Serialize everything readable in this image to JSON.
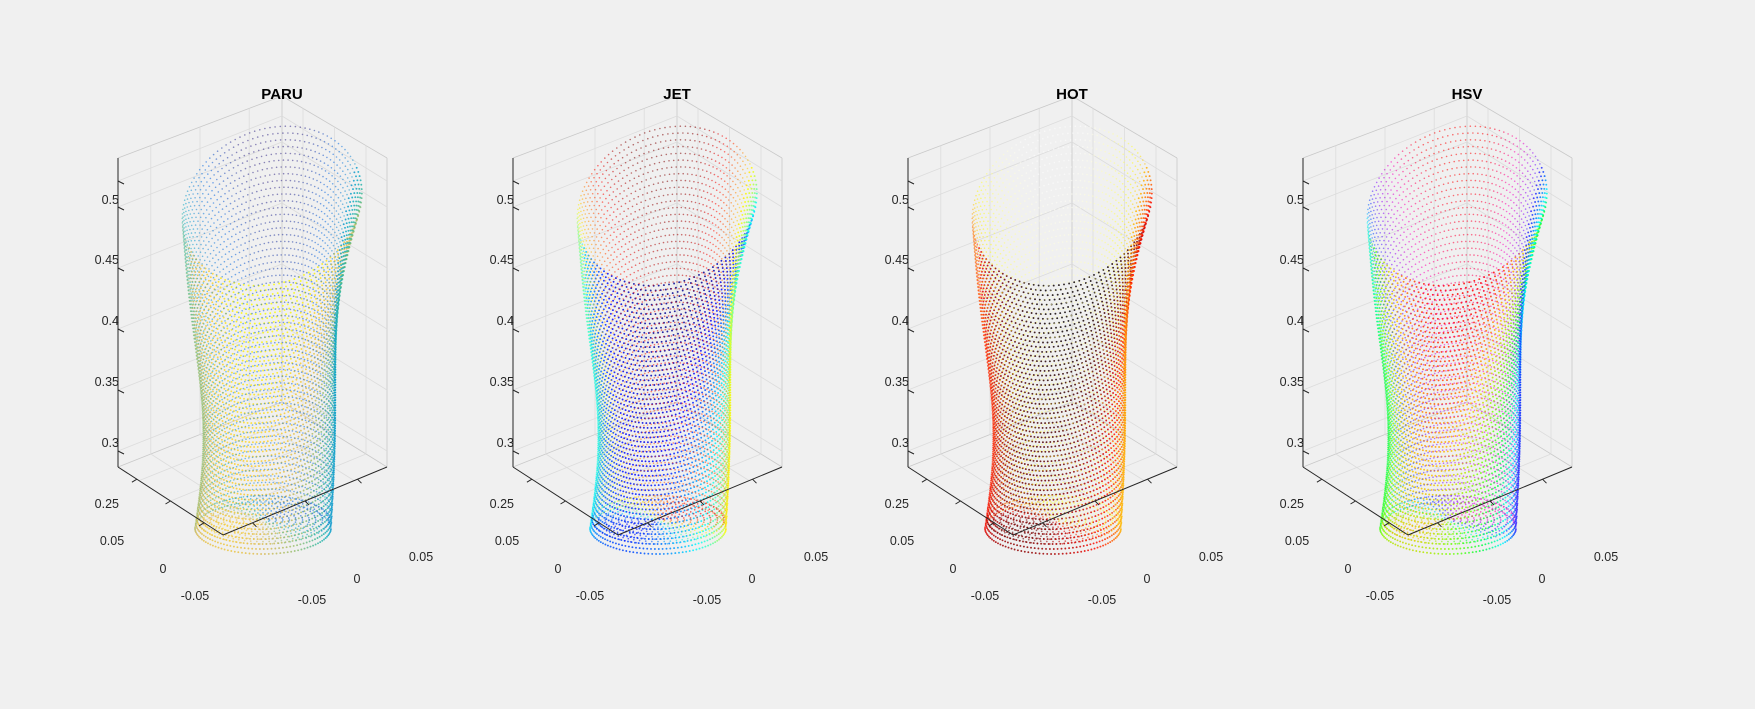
{
  "chart_data": [
    {
      "type": "scatter3d",
      "title": "PARU",
      "colormap": "parula",
      "colors": [
        "#352a87",
        "#0363e1",
        "#1485d4",
        "#06a7c6",
        "#38b99e",
        "#92bf73",
        "#d9ba56",
        "#fcce2e",
        "#f9fb0e"
      ],
      "z_ticks": [
        "0.25",
        "0.3",
        "0.35",
        "0.4",
        "0.45",
        "0.5"
      ],
      "y_ticks": [
        "0.05",
        "0",
        "-0.05"
      ],
      "x_ticks": [
        "-0.05",
        "0",
        "0.05"
      ],
      "zlim": [
        0.24,
        0.52
      ],
      "xlim": [
        -0.08,
        0.08
      ],
      "ylim": [
        -0.08,
        0.08
      ],
      "grid": true
    },
    {
      "type": "scatter3d",
      "title": "JET",
      "colormap": "jet",
      "colors": [
        "#00008f",
        "#0000ff",
        "#0080ff",
        "#00ffff",
        "#80ff80",
        "#ffff00",
        "#ff8000",
        "#ff0000",
        "#800000"
      ],
      "z_ticks": [
        "0.25",
        "0.3",
        "0.35",
        "0.4",
        "0.45",
        "0.5"
      ],
      "y_ticks": [
        "0.05",
        "0",
        "-0.05"
      ],
      "x_ticks": [
        "-0.05",
        "0",
        "0.05"
      ],
      "zlim": [
        0.24,
        0.52
      ],
      "xlim": [
        -0.08,
        0.08
      ],
      "ylim": [
        -0.08,
        0.08
      ],
      "grid": true
    },
    {
      "type": "scatter3d",
      "title": "HOT",
      "colormap": "hot",
      "colors": [
        "#0b0000",
        "#600000",
        "#b50000",
        "#ff0b00",
        "#ff6000",
        "#ffb500",
        "#ffff0f",
        "#ffff87",
        "#ffffff"
      ],
      "z_ticks": [
        "0.25",
        "0.3",
        "0.35",
        "0.4",
        "0.45",
        "0.5"
      ],
      "y_ticks": [
        "0.05",
        "0",
        "-0.05"
      ],
      "x_ticks": [
        "-0.05",
        "0",
        "0.05"
      ],
      "zlim": [
        0.24,
        0.52
      ],
      "xlim": [
        -0.08,
        0.08
      ],
      "ylim": [
        -0.08,
        0.08
      ],
      "grid": true
    },
    {
      "type": "scatter3d",
      "title": "HSV",
      "colormap": "hsv",
      "colors": [
        "#ff0000",
        "#ffbf00",
        "#80ff00",
        "#00ff40",
        "#00ffff",
        "#0040ff",
        "#8000ff",
        "#ff00bf",
        "#ff0000"
      ],
      "z_ticks": [
        "0.25",
        "0.3",
        "0.35",
        "0.4",
        "0.45",
        "0.5"
      ],
      "y_ticks": [
        "0.05",
        "0",
        "-0.05"
      ],
      "x_ticks": [
        "-0.05",
        "0",
        "0.05"
      ],
      "zlim": [
        0.24,
        0.52
      ],
      "xlim": [
        -0.08,
        0.08
      ],
      "ylim": [
        -0.08,
        0.08
      ],
      "grid": true
    }
  ]
}
